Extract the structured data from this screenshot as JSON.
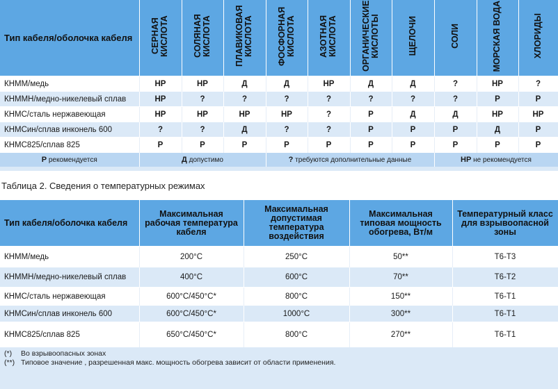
{
  "table1": {
    "header_first": "Тип кабеля/оболочка кабеля",
    "columns": [
      "СЕРНАЯ КИСЛОТА",
      "СОЛЯНАЯ КИСЛОТА",
      "ПЛАВИКОВАЯ КИСЛОТА",
      "ФОСФОРНАЯ КИСЛОТА",
      "АЗОТНАЯ КИСЛОТА",
      "ОРГАНИЧЕСКИЕ КИСЛОТЫ",
      "ЩЕЛОЧИ",
      "СОЛИ",
      "МОРСКАЯ ВОДА",
      "ХЛОРИДЫ"
    ],
    "rows": [
      {
        "name": "КНММ/медь",
        "values": [
          "НР",
          "НР",
          "Д",
          "Д",
          "НР",
          "Д",
          "Д",
          "?",
          "НР",
          "?"
        ]
      },
      {
        "name": "КНММН/медно-никелевый сплав",
        "values": [
          "НР",
          "?",
          "?",
          "?",
          "?",
          "?",
          "?",
          "?",
          "Р",
          "Р"
        ]
      },
      {
        "name": "КНМС/сталь нержавеющая",
        "values": [
          "НР",
          "НР",
          "НР",
          "НР",
          "?",
          "Р",
          "Д",
          "Д",
          "НР",
          "НР"
        ]
      },
      {
        "name": "КНМСин/сплав инконель 600",
        "values": [
          "?",
          "?",
          "Д",
          "?",
          "?",
          "Р",
          "Р",
          "Р",
          "Д",
          "Р"
        ]
      },
      {
        "name": "КНМС825/сплав 825",
        "values": [
          "Р",
          "Р",
          "Р",
          "Р",
          "Р",
          "Р",
          "Р",
          "Р",
          "Р",
          "Р"
        ]
      }
    ],
    "legend": [
      {
        "code": "Р",
        "text": " рекомендуется"
      },
      {
        "code": "Д",
        "text": " допустимо"
      },
      {
        "code": "?",
        "text": " требуются дополнительные данные"
      },
      {
        "code": "НР",
        "text": " не рекомендуется"
      }
    ]
  },
  "caption": "Таблица 2. Сведения о температурных режимах",
  "table2": {
    "headers": [
      "Тип кабеля/оболочка кабеля",
      "Максимальная рабочая температура кабеля",
      "Максимальная допустимая температура воздействия",
      "Максимальная типовая мощность обогрева, Вт/м",
      "Температурный класс для взрывоопасной зоны"
    ],
    "rows": [
      {
        "name": "КНММ/медь",
        "work": "200°C",
        "max": "250°C",
        "power": "50**",
        "class": "T6-T3"
      },
      {
        "name": "КНММН/медно-никелевый сплав",
        "work": "400°C",
        "max": "600°C",
        "power": "70**",
        "class": "T6-T2"
      },
      {
        "name": "КНМС/сталь нержавеющая",
        "work": "600°C/450°C*",
        "max": "800°C",
        "power": "150**",
        "class": "T6-T1"
      },
      {
        "name": "КНМСин/сплав инконель 600",
        "work": "600°C/450°C*",
        "max": "1000°C",
        "power": "300**",
        "class": "T6-T1"
      },
      {
        "name": "КНМС825/сплав 825",
        "work": "650°C/450°C*",
        "max": "800°C",
        "power": "270**",
        "class": "T6-T1"
      }
    ]
  },
  "notes": [
    {
      "mark": "(*)",
      "text": "Во взрывоопасных зонах"
    },
    {
      "mark": "(**)",
      "text": "Типовое значение , разрешенная макс. мощность обогрева зависит от области применения."
    }
  ]
}
